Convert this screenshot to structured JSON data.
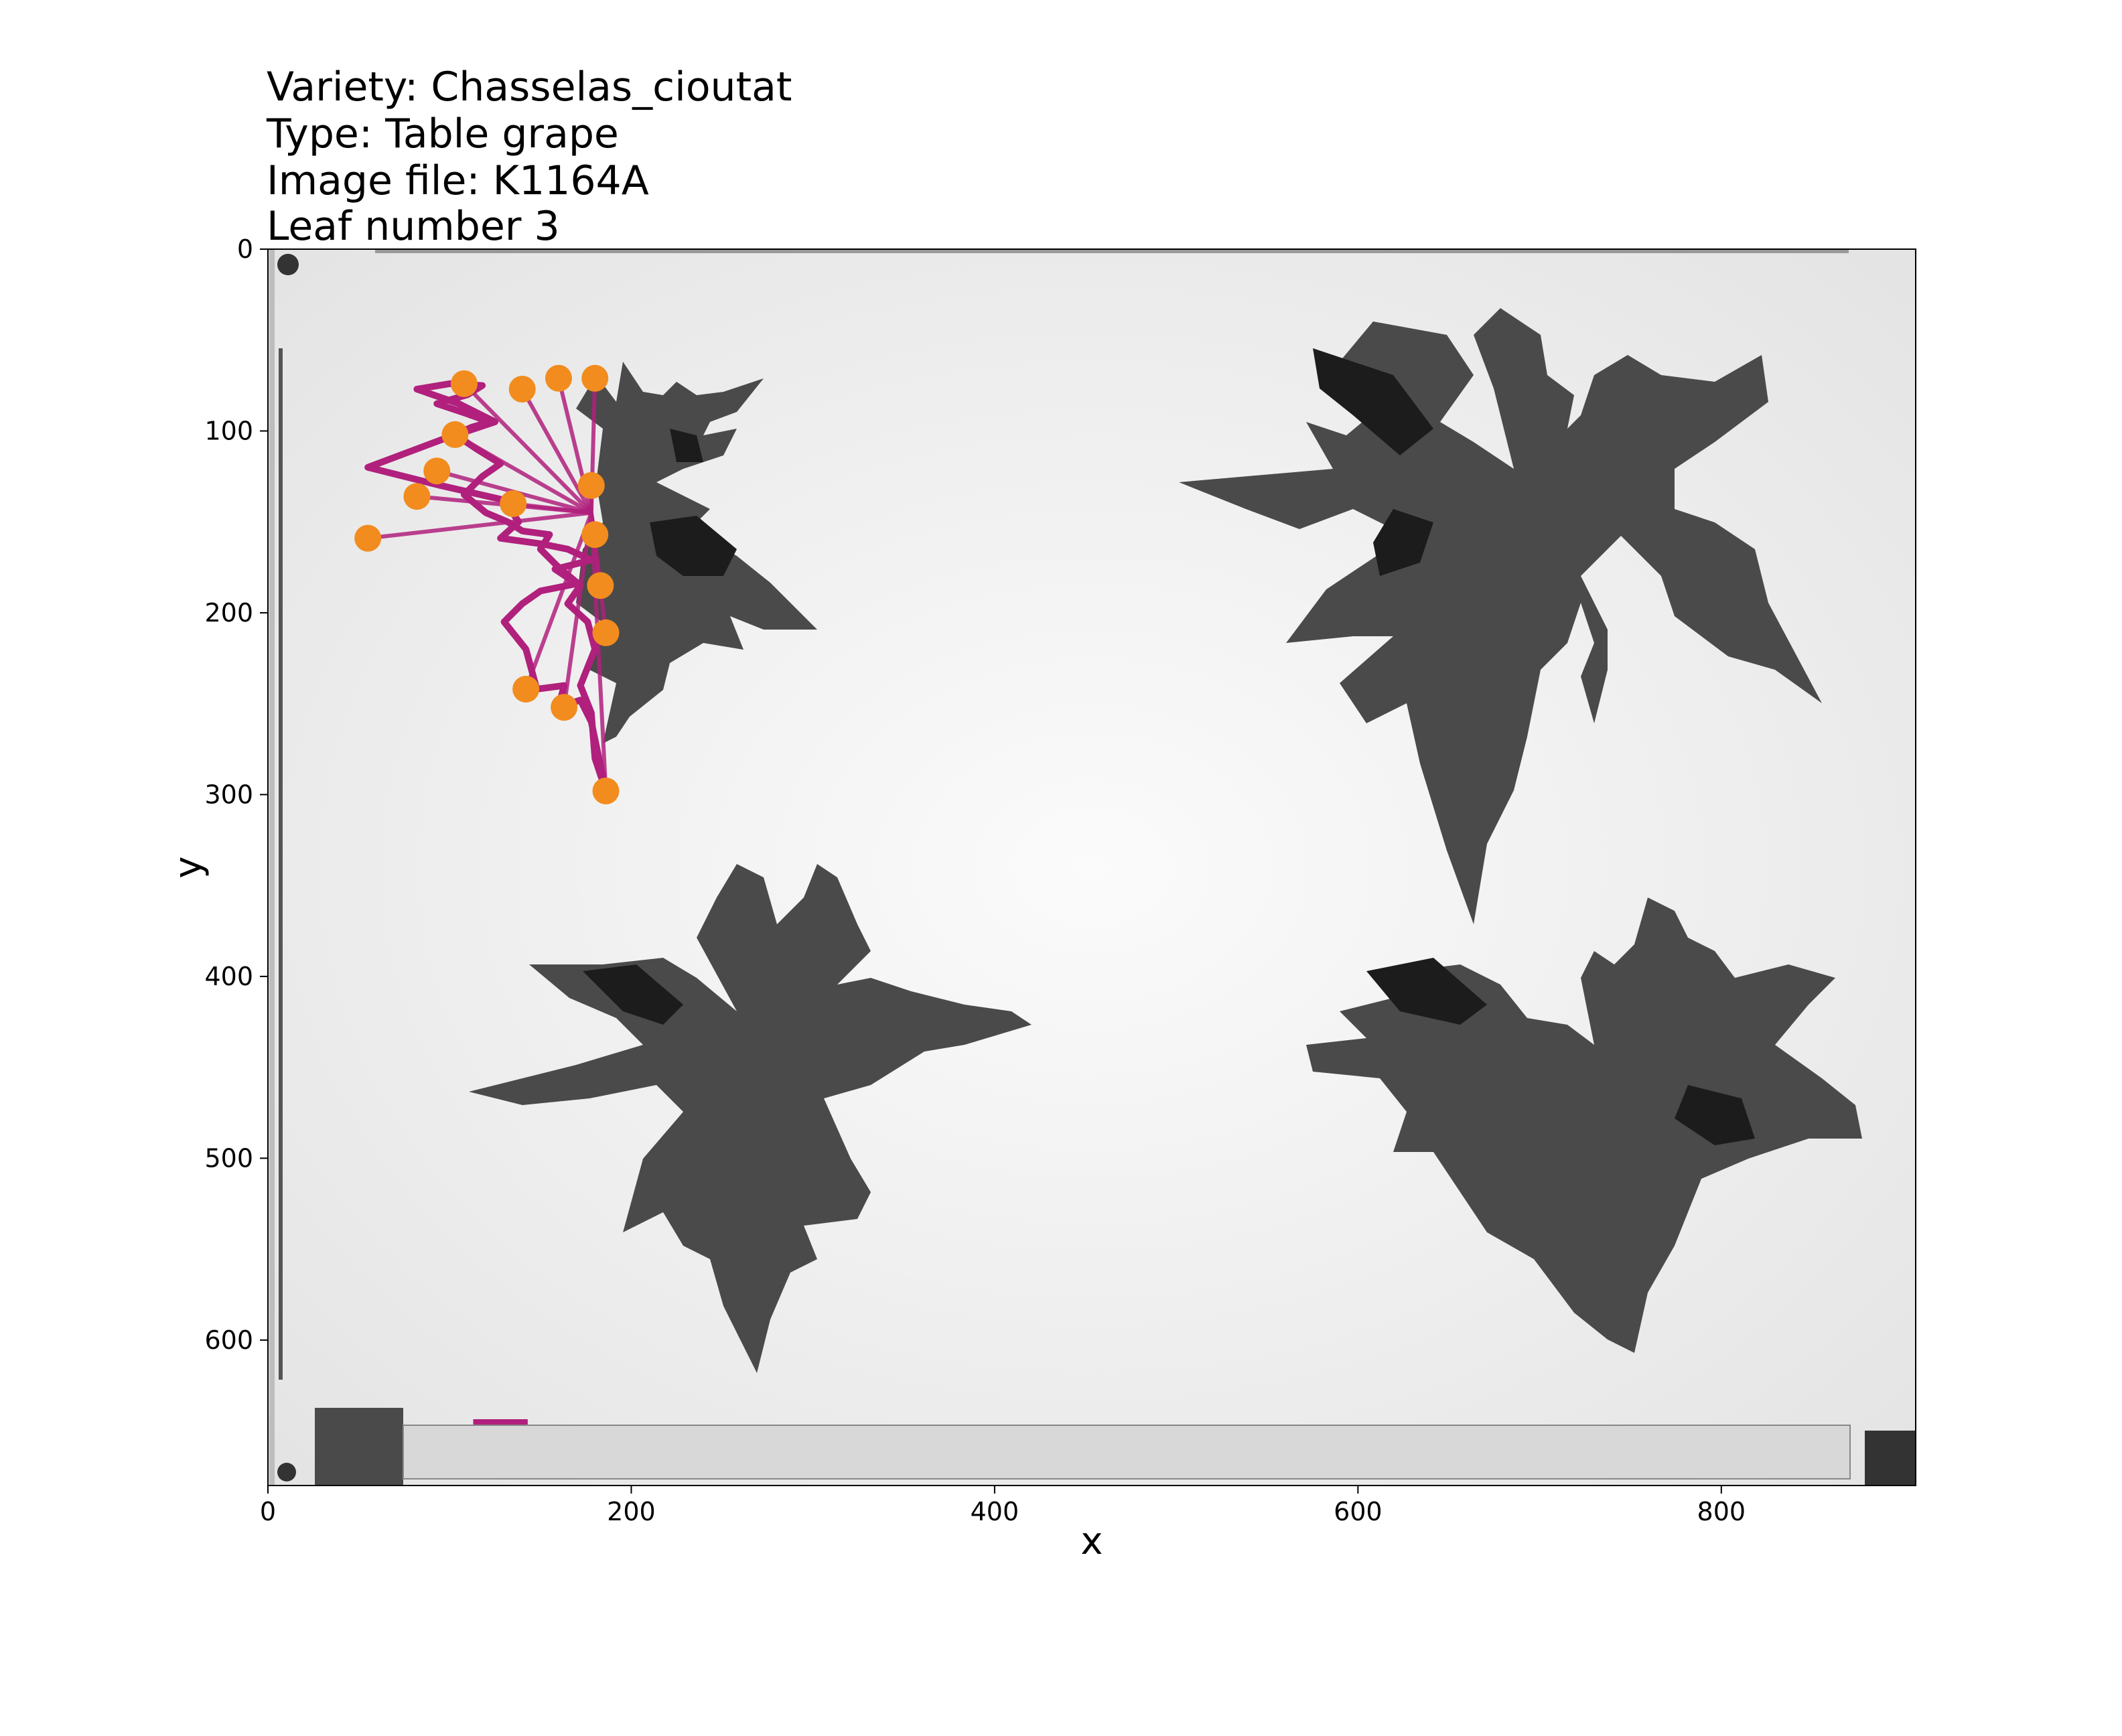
{
  "chart_data": {
    "type": "scatter",
    "title_lines": [
      "Variety: Chasselas_cioutat",
      "Type: Table grape",
      "Image file: K1164A",
      "Leaf number 3"
    ],
    "xlabel": "x",
    "ylabel": "y",
    "xlim": [
      0,
      907
    ],
    "ylim": [
      680,
      0
    ],
    "x_ticks": [
      0,
      200,
      400,
      600,
      800
    ],
    "y_ticks": [
      0,
      100,
      200,
      300,
      400,
      500,
      600
    ],
    "grid": false,
    "colors": {
      "landmark": "#f28c1e",
      "outline": "#b0207c",
      "leaf": "#4a4a4a",
      "leaf_dark": "#1c1c1c",
      "background": "#f2f2f2"
    },
    "landmarks": {
      "x": [
        108,
        140,
        160,
        180,
        103,
        93,
        82,
        55,
        135,
        178,
        180,
        183,
        186,
        142,
        163,
        186
      ],
      "y": [
        74,
        77,
        71,
        71,
        102,
        122,
        136,
        159,
        140,
        130,
        157,
        185,
        211,
        242,
        252,
        298
      ]
    },
    "outline": {
      "x": [
        186,
        180,
        178,
        172,
        180,
        176,
        165,
        172,
        160,
        150,
        155,
        140,
        132,
        120,
        108,
        118,
        128,
        115,
        103,
        112,
        122,
        108,
        93,
        110,
        118,
        100,
        82,
        105,
        125,
        95,
        55,
        95,
        130,
        138,
        128,
        150,
        165,
        178,
        158,
        170,
        150,
        140,
        130,
        142,
        148,
        163,
        160,
        172,
        178,
        186
      ],
      "y": [
        298,
        280,
        255,
        240,
        220,
        205,
        195,
        185,
        175,
        165,
        157,
        155,
        150,
        145,
        135,
        125,
        118,
        110,
        102,
        98,
        95,
        90,
        85,
        80,
        75,
        74,
        77,
        85,
        95,
        105,
        120,
        130,
        138,
        150,
        159,
        162,
        165,
        171,
        176,
        184,
        188,
        195,
        205,
        220,
        242,
        240,
        252,
        248,
        260,
        298
      ]
    },
    "scale_bar": {
      "x": [
        113,
        143
      ],
      "y": [
        645,
        645
      ]
    }
  }
}
